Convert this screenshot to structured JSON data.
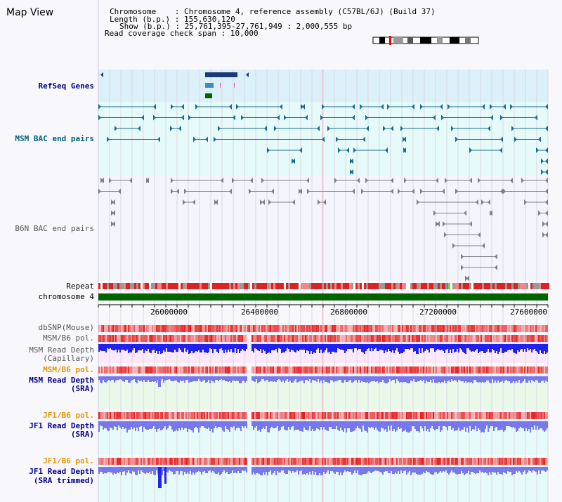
{
  "title": "Map View",
  "info": {
    "chromosome_key": "Chromosome",
    "chromosome_val": "Chromosome 4, reference assembly (C57BL/6J) (Build 37)",
    "length_key": "Length (b.p.)",
    "length_val": "155,630,120",
    "show_key": "Show (b.p.)",
    "show_val": "25,761,395-27,761,949 : 2,000,555 bp",
    "coverage_key": "Read coverage check span",
    "coverage_val": "10,000"
  },
  "tracks": {
    "refseq": "RefSeq Genes",
    "msm_bac": "MSM BAC end pairs",
    "b6n_bac": "B6N BAC end pairs",
    "repeat": "Repeat",
    "chromosome": "chromosome 4",
    "dbsnp": "dbSNP(Mouse)",
    "msm_b6_pol_1": "MSM/B6 pol.",
    "msm_depth_cap_1": "MSM Read Depth",
    "msm_depth_cap_2": "(Capillary)",
    "msm_b6_pol_2": "MSM/B6 pol.",
    "msm_depth_sra_1": "MSM Read Depth",
    "msm_depth_sra_2": "(SRA)",
    "jf1_b6_pol_1": "JF1/B6 pol.",
    "jf1_depth_sra_1": "JF1 Read Depth",
    "jf1_depth_sra_2": "(SRA)",
    "jf1_b6_pol_2": "JF1/B6 pol.",
    "jf1_depth_trim_1": "JF1 Read Depth",
    "jf1_depth_trim_2": "(SRA trimmed)"
  },
  "axis": {
    "ticks": [
      "26000000",
      "26400000",
      "26800000",
      "27200000",
      "27600000"
    ]
  },
  "colors": {
    "refseq_bg": "#dcf0fa",
    "bac_bg": "#e6fafa",
    "msm_bac_feature": "#1a6e8c",
    "b6n_bac_feature": "#808080",
    "chromosome_band": "#006400",
    "repeat_red": "#dd2222",
    "snp_red": "#e82020",
    "depth_blue": "#2222ee",
    "depth_light_blue": "#7777ee",
    "pink_bg": "#fbe8fa",
    "green_bg": "#eaf8ea"
  }
}
